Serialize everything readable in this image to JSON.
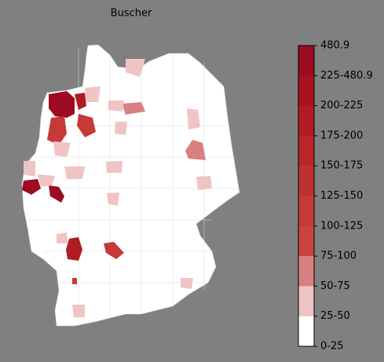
{
  "title": "Buscher",
  "legend": {
    "labels": [
      "480.9",
      "225-480.9",
      "200-225",
      "175-200",
      "150-175",
      "125-150",
      "100-125",
      "75-100",
      "50-75",
      "25-50",
      "0-25"
    ],
    "colors": [
      "#9c0b22",
      "#a8131f",
      "#b01c24",
      "#b8262a",
      "#bf3030",
      "#c53a36",
      "#c94440",
      "#d98080",
      "#efc4c4",
      "#ffffff"
    ]
  }
}
